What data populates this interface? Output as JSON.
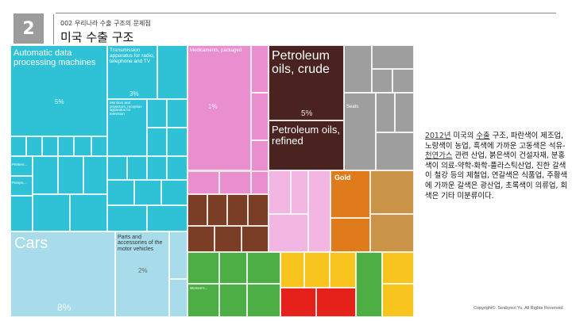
{
  "slide": {
    "number": "2",
    "subtitle": "002 우리나라 수출 구조의 문제점",
    "title": "미국 수출 구조"
  },
  "treemap": {
    "blocks": {
      "adp": {
        "label": "Automatic data processing machines",
        "pct": "5%",
        "color": "#2fc2d6"
      },
      "trans": {
        "label": "Transmission apparatus for radio, telephone and TV",
        "pct": "3%",
        "color": "#2fc2d6"
      },
      "monitors": {
        "label": "Monitors and projectors, reception apparatus for television",
        "color": "#2fc2d6"
      },
      "printers": {
        "label": "Printers...",
        "color": "#2fc2d6"
      },
      "pumps": {
        "label": "Pumps...",
        "color": "#2fc2d6"
      },
      "cars": {
        "label": "Cars",
        "pct": "8%",
        "color": "#a8dcea"
      },
      "parts": {
        "label": "Parts and accessories of the motor vehicles",
        "pct": "2%",
        "color": "#a8dcea"
      },
      "med": {
        "label": "Medicaments, packaged",
        "pct": "1%",
        "color": "#e98fd0"
      },
      "crude": {
        "label": "Petroleum oils, crude",
        "pct": "5%",
        "color": "#4a2320"
      },
      "refined": {
        "label": "Petroleum oils, refined",
        "color": "#4a2320"
      },
      "seats": {
        "label": "Seats",
        "color": "#9e9e9e"
      },
      "gold": {
        "label": "Gold",
        "color": "#e07b1c"
      },
      "women": {
        "label": "Women's...",
        "color": "#4cae44"
      }
    }
  },
  "description": {
    "year": "2012년",
    "t1": " 미국의 ",
    "export": "수출",
    "t2": " 구조, 파란색이 제조업, 노랑색이 농업, 흑색에 가까운 고동색은 석유-",
    "gas": "천연가스",
    "t3": " 관련 산업, 붉은색이 건설자재, 분홍색이 의료-약학-화학-플라스틱산업, 진한 갈색이 철강 등의 제철업, 연갈색은 식품업, 주황색에 가까운 갈색은 광산업, 초록색이 의류업, 회색은 기타 미분류이다."
  },
  "copyright": "Copyright©. Seabyeol Yu. All Rights Reserved."
}
